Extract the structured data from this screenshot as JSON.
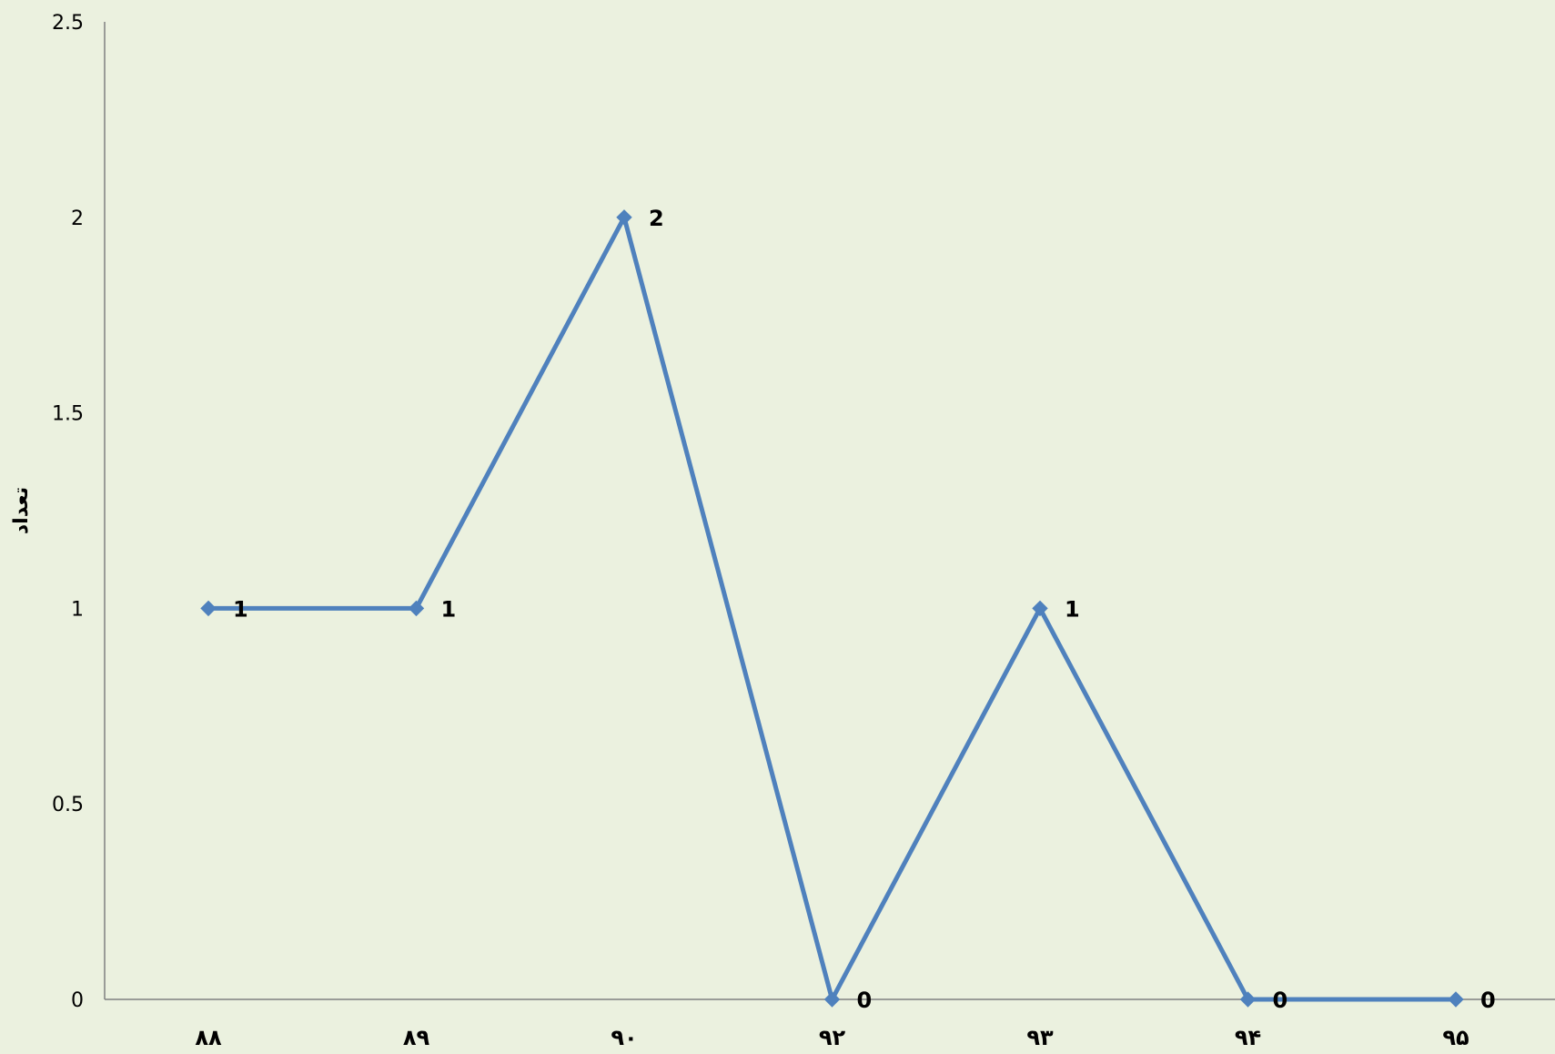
{
  "chart_data": {
    "type": "line",
    "title": "",
    "xlabel": "",
    "ylabel": "تعداد",
    "categories": [
      "۸۸",
      "۸۹",
      "۹۰",
      "۹۲",
      "۹۳",
      "۹۴",
      "۹۵"
    ],
    "series": [
      {
        "values": [
          1,
          1,
          2,
          0,
          1,
          0,
          0
        ],
        "color": "#4f81bd",
        "marker": "diamond"
      }
    ],
    "data_labels": [
      "1",
      "1",
      "2",
      "0",
      "1",
      "0",
      "0"
    ],
    "yticks": [
      "0",
      "0.5",
      "1",
      "1.5",
      "2",
      "2.5"
    ],
    "ylim": [
      0,
      2.5
    ],
    "grid": false,
    "legend": "none",
    "colors": {
      "background": "#ebf1df",
      "axis": "#808080",
      "line": "#4f81bd"
    }
  }
}
